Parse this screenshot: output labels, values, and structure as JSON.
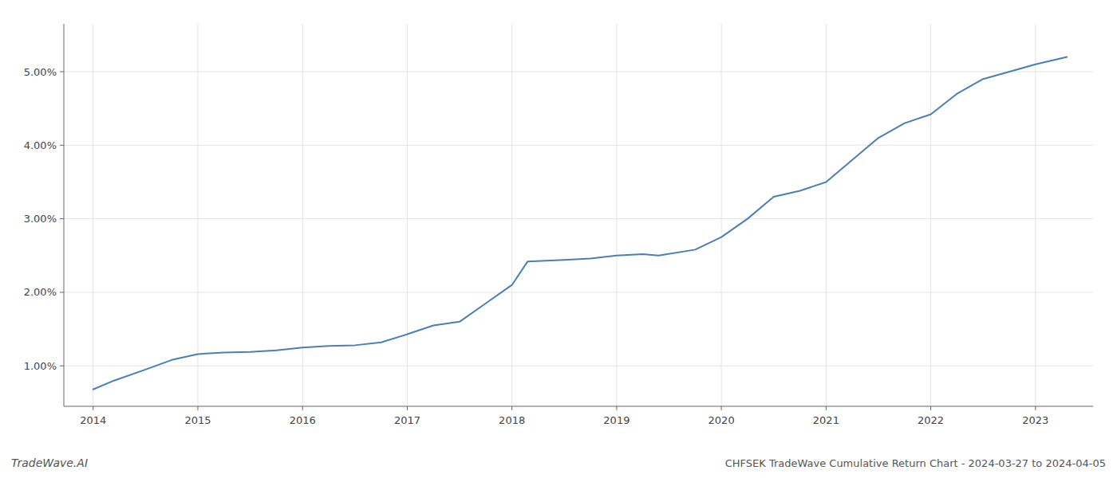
{
  "chart_data": {
    "type": "line",
    "title": "CHFSEK TradeWave Cumulative Return Chart - 2024-03-27 to 2024-04-05",
    "annotations": [
      "TradeWave.AI"
    ],
    "color": "#4a7fb5",
    "grid": true,
    "x": [
      2014.0,
      2014.2,
      2014.5,
      2014.75,
      2015.0,
      2015.25,
      2015.5,
      2015.75,
      2016.0,
      2016.25,
      2016.5,
      2016.75,
      2017.0,
      2017.25,
      2017.5,
      2017.75,
      2018.0,
      2018.15,
      2018.5,
      2018.75,
      2019.0,
      2019.25,
      2019.4,
      2019.75,
      2020.0,
      2020.25,
      2020.5,
      2020.75,
      2021.0,
      2021.25,
      2021.5,
      2021.75,
      2022.0,
      2022.25,
      2022.5,
      2022.75,
      2023.0,
      2023.3
    ],
    "values": [
      0.68,
      0.8,
      0.95,
      1.08,
      1.16,
      1.18,
      1.19,
      1.21,
      1.25,
      1.27,
      1.28,
      1.32,
      1.43,
      1.55,
      1.6,
      1.85,
      2.1,
      2.42,
      2.44,
      2.46,
      2.5,
      2.52,
      2.5,
      2.58,
      2.75,
      3.0,
      3.3,
      3.38,
      3.5,
      3.8,
      4.1,
      4.3,
      4.42,
      4.7,
      4.9,
      5.0,
      5.1,
      5.2
    ],
    "xlim": [
      2013.72,
      2023.55
    ],
    "xticks": [
      2014,
      2015,
      2016,
      2017,
      2018,
      2019,
      2020,
      2021,
      2022,
      2023
    ],
    "ylim": [
      0.45,
      5.65
    ],
    "yticks": [
      {
        "value": 1.0,
        "label": "1.00%"
      },
      {
        "value": 2.0,
        "label": "2.00%"
      },
      {
        "value": 3.0,
        "label": "3.00%"
      },
      {
        "value": 4.0,
        "label": "4.00%"
      },
      {
        "value": 5.0,
        "label": "5.00%"
      }
    ]
  }
}
